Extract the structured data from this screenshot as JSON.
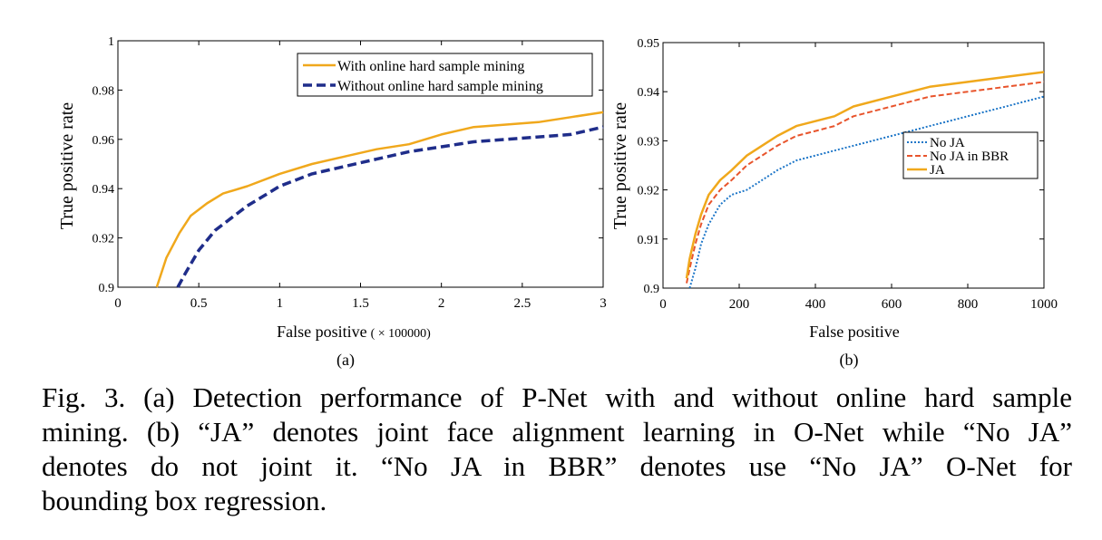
{
  "chart_data": [
    {
      "type": "line",
      "panel_label": "(a)",
      "xlabel": "False positive",
      "xlabel_unit": "( × 100000)",
      "ylabel": "True positive rate",
      "xlim": [
        0,
        3
      ],
      "ylim": [
        0.9,
        1
      ],
      "xticks": [
        "0",
        "0.5",
        "1",
        "1.5",
        "2",
        "2.5",
        "3"
      ],
      "yticks": [
        "0.9",
        "0.92",
        "0.94",
        "0.96",
        "0.98",
        "1"
      ],
      "legend_position": "top-right",
      "series": [
        {
          "name": "With online hard sample mining",
          "color": "#f0a81c",
          "style": "solid",
          "x": [
            0.24,
            0.3,
            0.38,
            0.45,
            0.55,
            0.65,
            0.8,
            1.0,
            1.2,
            1.4,
            1.6,
            1.8,
            2.0,
            2.2,
            2.4,
            2.6,
            2.8,
            3.0
          ],
          "y": [
            0.9,
            0.912,
            0.922,
            0.929,
            0.934,
            0.938,
            0.941,
            0.946,
            0.95,
            0.953,
            0.956,
            0.958,
            0.962,
            0.965,
            0.966,
            0.967,
            0.969,
            0.971
          ]
        },
        {
          "name": "Without online hard sample mining",
          "color": "#1f2d8a",
          "style": "dashed",
          "x": [
            0.37,
            0.42,
            0.5,
            0.6,
            0.7,
            0.8,
            0.9,
            1.0,
            1.2,
            1.4,
            1.6,
            1.8,
            2.0,
            2.2,
            2.4,
            2.6,
            2.8,
            3.0
          ],
          "y": [
            0.9,
            0.906,
            0.915,
            0.923,
            0.928,
            0.933,
            0.937,
            0.941,
            0.946,
            0.949,
            0.952,
            0.955,
            0.957,
            0.959,
            0.96,
            0.961,
            0.962,
            0.965
          ]
        }
      ]
    },
    {
      "type": "line",
      "panel_label": "(b)",
      "xlabel": "False positive",
      "ylabel": "True positive rate",
      "xlim": [
        0,
        1000
      ],
      "ylim": [
        0.9,
        0.95
      ],
      "xticks": [
        "0",
        "200",
        "400",
        "600",
        "800",
        "1000"
      ],
      "yticks": [
        "0.9",
        "0.91",
        "0.92",
        "0.93",
        "0.94",
        "0.95"
      ],
      "legend_position": "right",
      "series": [
        {
          "name": "No JA",
          "color": "#1f77c8",
          "style": "dotted",
          "x": [
            70,
            85,
            100,
            120,
            150,
            180,
            220,
            260,
            300,
            350,
            400,
            450,
            500,
            600,
            700,
            800,
            900,
            1000
          ],
          "y": [
            0.9,
            0.904,
            0.909,
            0.913,
            0.917,
            0.919,
            0.92,
            0.922,
            0.924,
            0.926,
            0.927,
            0.928,
            0.929,
            0.931,
            0.933,
            0.935,
            0.937,
            0.939
          ]
        },
        {
          "name": "No JA in BBR",
          "color": "#e8542c",
          "style": "dashed",
          "x": [
            62,
            70,
            85,
            100,
            120,
            150,
            180,
            220,
            260,
            300,
            350,
            400,
            450,
            500,
            600,
            700,
            800,
            900,
            1000
          ],
          "y": [
            0.901,
            0.904,
            0.909,
            0.913,
            0.917,
            0.92,
            0.922,
            0.925,
            0.927,
            0.929,
            0.931,
            0.932,
            0.933,
            0.935,
            0.937,
            0.939,
            0.94,
            0.941,
            0.942
          ]
        },
        {
          "name": "JA",
          "color": "#f0a81c",
          "style": "solid",
          "x": [
            62,
            70,
            85,
            100,
            120,
            150,
            180,
            220,
            260,
            300,
            350,
            400,
            450,
            500,
            600,
            700,
            800,
            900,
            1000
          ],
          "y": [
            0.902,
            0.906,
            0.911,
            0.915,
            0.919,
            0.922,
            0.924,
            0.927,
            0.929,
            0.931,
            0.933,
            0.934,
            0.935,
            0.937,
            0.939,
            0.941,
            0.942,
            0.943,
            0.944
          ]
        }
      ]
    }
  ],
  "caption": {
    "line1": "Fig. 3. (a) Detection performance of P-Net with and without online hard sample",
    "line2": "mining. (b) “JA” denotes joint face alignment learning in O-Net while “No JA”",
    "line3": "denotes do not joint it. “No JA in BBR” denotes use “No JA” O-Net for",
    "line4": "bounding box regression."
  }
}
